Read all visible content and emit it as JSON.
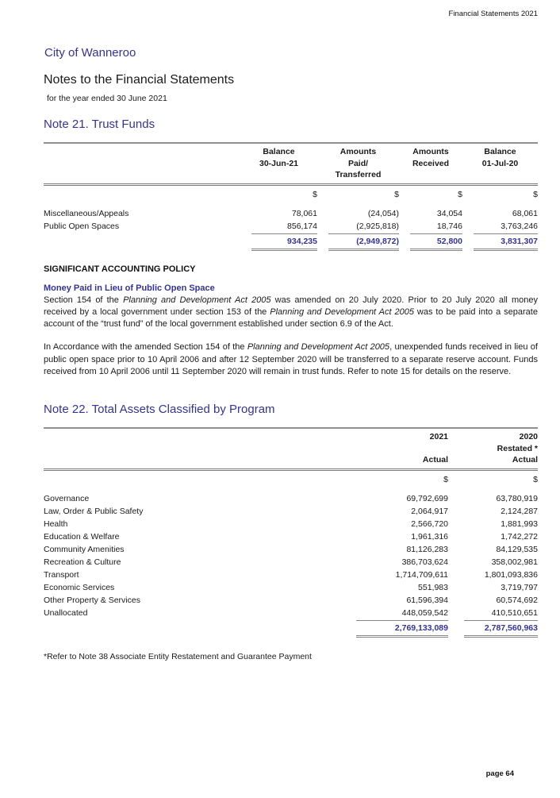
{
  "page": {
    "header_right": "Financial Statements 2021",
    "org_title": "City of Wanneroo",
    "doc_title": "Notes to the Financial Statements",
    "doc_subtitle": "for the year ended 30 June 2021",
    "page_number": "page 64"
  },
  "colors": {
    "accent_blue": "#333399",
    "total_text": "#333399",
    "border_gray": "#808080"
  },
  "note21": {
    "title": "Note 21. Trust Funds",
    "columns": [
      [
        "Balance",
        "30-Jun-21",
        ""
      ],
      [
        "Amounts",
        "Paid/",
        "Transferred"
      ],
      [
        "Amounts",
        "Received",
        ""
      ],
      [
        "Balance",
        "01-Jul-20",
        ""
      ]
    ],
    "currency": [
      "$",
      "$",
      "$",
      "$"
    ],
    "rows": [
      {
        "label": "Miscellaneous/Appeals",
        "values": [
          "78,061",
          "(24,054)",
          "34,054",
          "68,061"
        ]
      },
      {
        "label": "Public Open Spaces",
        "values": [
          "856,174",
          "(2,925,818)",
          "18,746",
          "3,763,246"
        ]
      }
    ],
    "totals": [
      "934,235",
      "(2,949,872)",
      "52,800",
      "3,831,307"
    ],
    "policy_heading": "SIGNIFICANT ACCOUNTING POLICY",
    "policy_subheading": "Money Paid in Lieu of Public Open Space",
    "paragraph1": [
      {
        "t": "Section 154 of the "
      },
      {
        "t": "Planning and Development Act 2005",
        "i": true
      },
      {
        "t": " was amended on 20 July 2020. Prior to 20 July 2020 all money received by a local government under section 153 of the "
      },
      {
        "t": "Planning and Development Act 2005",
        "i": true
      },
      {
        "t": " was to be paid into a separate account of the “trust fund” of the local government established under section 6.9 of the Act."
      }
    ],
    "paragraph2": [
      {
        "t": "In Accordance with the amended Section 154 of the "
      },
      {
        "t": "Planning and Development Act 2005",
        "i": true
      },
      {
        "t": ", unexpended funds received in lieu of public open space prior to 10 April 2006 and after 12 September 2020 will be transferred to a separate reserve account. Funds received from 10 April 2006 until 11 September 2020 will remain in trust funds. Refer to note 15 for details on the reserve."
      }
    ]
  },
  "note22": {
    "title": "Note 22. Total Assets Classified by Program",
    "columns": [
      [
        "2021",
        "",
        "Actual"
      ],
      [
        "2020",
        "Restated *",
        "Actual"
      ]
    ],
    "currency": [
      "$",
      "$"
    ],
    "rows": [
      {
        "label": "Governance",
        "values": [
          "69,792,699",
          "63,780,919"
        ]
      },
      {
        "label": "Law, Order & Public Safety",
        "values": [
          "2,064,917",
          "2,124,287"
        ]
      },
      {
        "label": "Health",
        "values": [
          "2,566,720",
          "1,881,993"
        ]
      },
      {
        "label": "Education & Welfare",
        "values": [
          "1,961,316",
          "1,742,272"
        ]
      },
      {
        "label": "Community Amenities",
        "values": [
          "81,126,283",
          "84,129,535"
        ]
      },
      {
        "label": "Recreation & Culture",
        "values": [
          "386,703,624",
          "358,002,981"
        ]
      },
      {
        "label": "Transport",
        "values": [
          "1,714,709,611",
          "1,801,093,836"
        ]
      },
      {
        "label": "Economic Services",
        "values": [
          "551,983",
          "3,719,797"
        ]
      },
      {
        "label": "Other Property & Services",
        "values": [
          "61,596,394",
          "60,574,692"
        ]
      },
      {
        "label": "Unallocated",
        "values": [
          "448,059,542",
          "410,510,651"
        ]
      }
    ],
    "totals": [
      "2,769,133,089",
      "2,787,560,963"
    ],
    "footnote": "*Refer to Note 38 Associate Entity Restatement and Guarantee Payment"
  }
}
